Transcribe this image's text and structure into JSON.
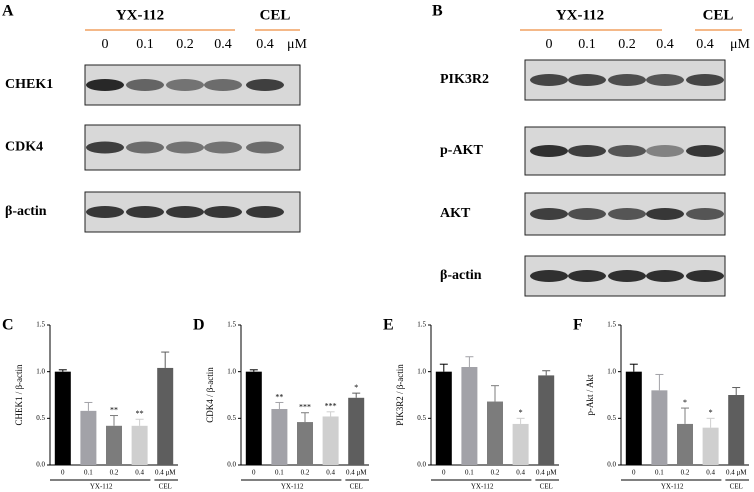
{
  "blots": [
    {
      "letter": "A",
      "group": "YX-112",
      "control": "CEL",
      "lanes": [
        "0",
        "0.1",
        "0.2",
        "0.4",
        "0.4"
      ],
      "unit": "μM",
      "rows": [
        "CHEK1",
        "CDK4",
        "β-actin"
      ]
    },
    {
      "letter": "B",
      "group": "YX-112",
      "control": "CEL",
      "lanes": [
        "0",
        "0.1",
        "0.2",
        "0.4",
        "0.4"
      ],
      "unit": "μM",
      "rows": [
        "PIK3R2",
        "p-AKT",
        "AKT",
        "β-actin"
      ]
    }
  ],
  "chart_data": [
    {
      "type": "bar",
      "letter": "C",
      "y_label": "CHEK1 / β-actin",
      "categories": [
        "0",
        "0.1",
        "0.2",
        "0.4",
        "0.4 μM"
      ],
      "groups": [
        "YX-112",
        "CEL"
      ],
      "values": [
        1.0,
        0.58,
        0.42,
        0.42,
        1.04
      ],
      "errors": [
        0.02,
        0.09,
        0.11,
        0.07,
        0.17
      ],
      "annotations": [
        null,
        null,
        "**",
        "**",
        null
      ],
      "colors": [
        "#000000",
        "#a2a2a8",
        "#7c7c7c",
        "#cfcfcf",
        "#5e5e5e"
      ],
      "ylim": [
        0,
        1.5
      ],
      "yticks": [
        {
          "value": 0,
          "label": "0.0"
        },
        0.5,
        {
          "value": 1,
          "label": "1.0"
        },
        1.5
      ]
    },
    {
      "type": "bar",
      "letter": "D",
      "y_label": "CDK4 / β-actin",
      "categories": [
        "0",
        "0.1",
        "0.2",
        "0.4",
        "0.4 μM"
      ],
      "groups": [
        "YX-112",
        "CEL"
      ],
      "values": [
        1.0,
        0.6,
        0.46,
        0.52,
        0.72
      ],
      "errors": [
        0.02,
        0.07,
        0.1,
        0.05,
        0.05
      ],
      "annotations": [
        null,
        "**",
        "***",
        "***",
        "*"
      ],
      "colors": [
        "#000000",
        "#a2a2a8",
        "#7c7c7c",
        "#cfcfcf",
        "#5e5e5e"
      ],
      "ylim": [
        0,
        1.5
      ],
      "yticks": [
        {
          "value": 0,
          "label": "0.0"
        },
        0.5,
        {
          "value": 1,
          "label": "1.0"
        },
        1.5
      ]
    },
    {
      "type": "bar",
      "letter": "E",
      "y_label": "PIK3R2 / β-actin",
      "categories": [
        "0",
        "0.1",
        "0.2",
        "0.4",
        "0.4 μM"
      ],
      "groups": [
        "YX-112",
        "CEL"
      ],
      "values": [
        1.0,
        1.05,
        0.68,
        0.44,
        0.96
      ],
      "errors": [
        0.08,
        0.11,
        0.17,
        0.06,
        0.05
      ],
      "annotations": [
        null,
        null,
        null,
        "*",
        null
      ],
      "colors": [
        "#000000",
        "#a2a2a8",
        "#7c7c7c",
        "#cfcfcf",
        "#5e5e5e"
      ],
      "ylim": [
        0,
        1.5
      ],
      "yticks": [
        {
          "value": 0,
          "label": "0.0"
        },
        0.5,
        {
          "value": 1,
          "label": "1.0"
        },
        1.5
      ]
    },
    {
      "type": "bar",
      "letter": "F",
      "y_label": "p-Akt / Akt",
      "categories": [
        "0",
        "0.1",
        "0.2",
        "0.4",
        "0.4 μM"
      ],
      "groups": [
        "YX-112",
        "CEL"
      ],
      "values": [
        1.0,
        0.8,
        0.44,
        0.4,
        0.75
      ],
      "errors": [
        0.08,
        0.17,
        0.17,
        0.1,
        0.08
      ],
      "annotations": [
        null,
        null,
        "*",
        "*",
        null
      ],
      "colors": [
        "#000000",
        "#a2a2a8",
        "#7c7c7c",
        "#cfcfcf",
        "#5e5e5e"
      ],
      "ylim": [
        0,
        1.5
      ],
      "yticks": [
        {
          "value": 0,
          "label": "0.0"
        },
        0.5,
        {
          "value": 1,
          "label": "1.0"
        },
        1.5
      ]
    }
  ]
}
